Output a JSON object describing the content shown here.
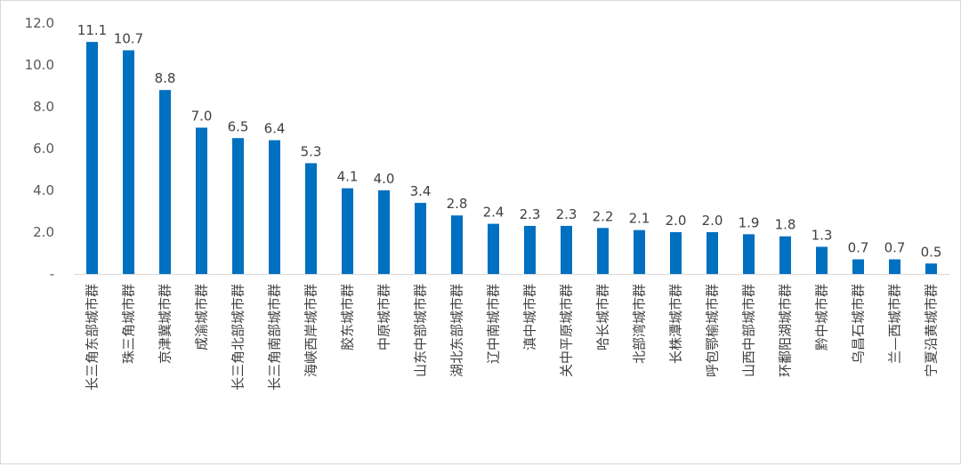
{
  "chart_data": {
    "type": "bar",
    "categories": [
      "长三角东部城市群",
      "珠三角城市群",
      "京津冀城市群",
      "成渝城市群",
      "长三角北部城市群",
      "长三角南部城市群",
      "海峡西岸城市群",
      "胶东城市群",
      "中原城市群",
      "山东中部城市群",
      "湖北东部城市群",
      "辽中南城市群",
      "滇中城市群",
      "关中平原城市群",
      "哈长城市群",
      "北部湾城市群",
      "长株潭城市群",
      "呼包鄂榆城市群",
      "山西中部城市群",
      "环鄱阳湖城市群",
      "黔中城市群",
      "乌昌石城市群",
      "兰—西城市群",
      "宁夏沿黄城市群"
    ],
    "values": [
      11.1,
      10.7,
      8.8,
      7.0,
      6.5,
      6.4,
      5.3,
      4.1,
      4.0,
      3.4,
      2.8,
      2.4,
      2.3,
      2.3,
      2.2,
      2.1,
      2.0,
      2.0,
      1.9,
      1.8,
      1.3,
      0.7,
      0.7,
      0.5
    ],
    "data_labels": [
      "11.1",
      "10.7",
      "8.8",
      "7.0",
      "6.5",
      "6.4",
      "5.3",
      "4.1",
      "4.0",
      "3.4",
      "2.8",
      "2.4",
      "2.3",
      "2.3",
      "2.2",
      "2.1",
      "2.0",
      "2.0",
      "1.9",
      "1.8",
      "1.3",
      "0.7",
      "0.7",
      "0.5"
    ],
    "ylim": [
      0,
      12
    ],
    "yticks": [
      0,
      2,
      4,
      6,
      8,
      10,
      12
    ],
    "ytick_labels": [
      "-",
      "2.0",
      "4.0",
      "6.0",
      "8.0",
      "10.0",
      "12.0"
    ],
    "title": "",
    "xlabel": "",
    "ylabel": "",
    "grid": false,
    "legend": "none",
    "bar_color": "#0070C0",
    "axis_color": "#D9D9D9"
  }
}
